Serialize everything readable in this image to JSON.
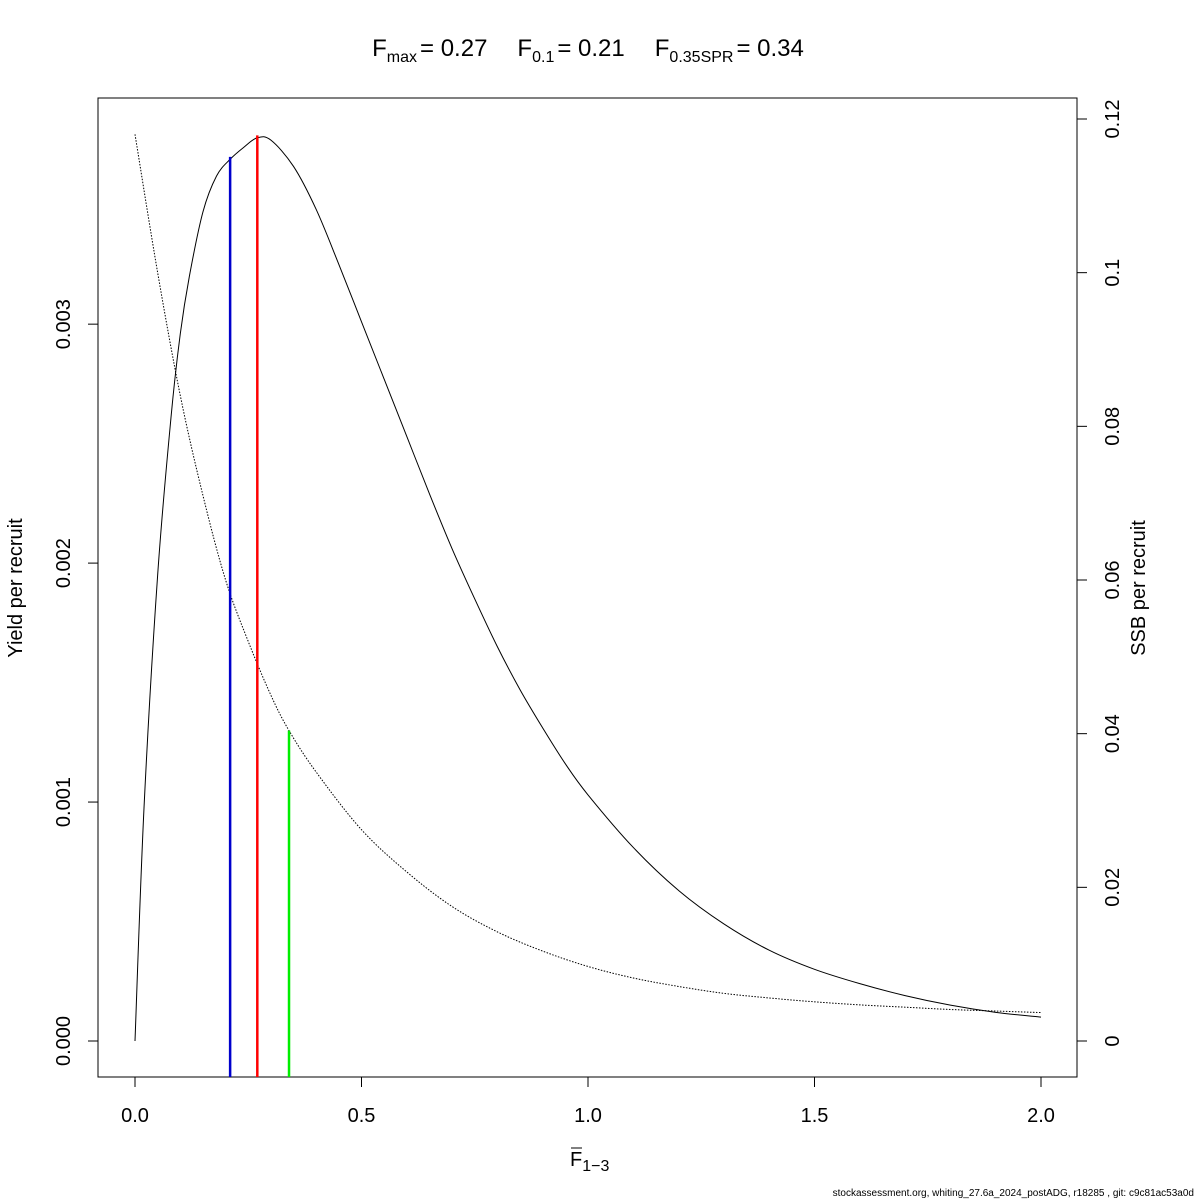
{
  "chart_data": {
    "type": "line",
    "title_parts": [
      {
        "main": "F",
        "sub": "max",
        "value": "= 0.27"
      },
      {
        "main": "F",
        "sub": "0.1",
        "value": "= 0.21"
      },
      {
        "main": "F",
        "sub": "0.35SPR",
        "value": "= 0.34"
      }
    ],
    "xlabel": {
      "main": "F",
      "sub": "1−3"
    },
    "ylabel_left": "Yield per recruit",
    "ylabel_right": "SSB per recruit",
    "xlim": [
      0,
      2
    ],
    "ylim_left": [
      0,
      0.0038
    ],
    "ylim_right": [
      0,
      0.12
    ],
    "x_ticks": [
      0.0,
      0.5,
      1.0,
      1.5,
      2.0
    ],
    "x_tick_labels": [
      "0.0",
      "0.5",
      "1.0",
      "1.5",
      "2.0"
    ],
    "y_left_ticks": [
      0.0,
      0.001,
      0.002,
      0.003
    ],
    "y_left_tick_labels": [
      "0.000",
      "0.001",
      "0.002",
      "0.003"
    ],
    "y_right_ticks": [
      0,
      0.02,
      0.04,
      0.06,
      0.08,
      0.1,
      0.12
    ],
    "y_right_tick_labels": [
      "0",
      "0.02",
      "0.04",
      "0.06",
      "0.08",
      "0.1",
      "0.12"
    ],
    "series": [
      {
        "name": "Yield per recruit",
        "axis": "left",
        "style": "solid",
        "color": "#000000",
        "x": [
          0,
          0.02,
          0.05,
          0.08,
          0.1,
          0.12,
          0.15,
          0.18,
          0.21,
          0.24,
          0.27,
          0.3,
          0.35,
          0.4,
          0.45,
          0.5,
          0.55,
          0.6,
          0.65,
          0.7,
          0.75,
          0.8,
          0.85,
          0.9,
          0.95,
          1.0,
          1.1,
          1.2,
          1.3,
          1.4,
          1.5,
          1.6,
          1.7,
          1.8,
          1.9,
          2.0
        ],
        "y": [
          0,
          0.00098,
          0.00195,
          0.00262,
          0.00296,
          0.0032,
          0.00347,
          0.00362,
          0.00369,
          0.00374,
          0.00378,
          0.00377,
          0.00366,
          0.00348,
          0.00325,
          0.00301,
          0.00277,
          0.00253,
          0.00229,
          0.00206,
          0.00185,
          0.00165,
          0.00147,
          0.00131,
          0.00116,
          0.00103,
          0.00081,
          0.00063,
          0.00049,
          0.00038,
          0.0003,
          0.00024,
          0.00019,
          0.00015,
          0.00012,
          0.0001
        ]
      },
      {
        "name": "SSB per recruit",
        "axis": "right",
        "style": "dotted",
        "color": "#000000",
        "x": [
          0,
          0.05,
          0.1,
          0.15,
          0.2,
          0.25,
          0.3,
          0.34,
          0.4,
          0.5,
          0.6,
          0.7,
          0.8,
          0.9,
          1.0,
          1.1,
          1.2,
          1.3,
          1.4,
          1.5,
          1.6,
          1.7,
          1.8,
          1.9,
          2.0
        ],
        "y": [
          0.118,
          0.1,
          0.084,
          0.071,
          0.06,
          0.052,
          0.045,
          0.0404,
          0.035,
          0.0275,
          0.022,
          0.0175,
          0.0142,
          0.0117,
          0.0097,
          0.0082,
          0.0071,
          0.0062,
          0.0056,
          0.0051,
          0.0047,
          0.0044,
          0.0041,
          0.0039,
          0.0037
        ]
      }
    ],
    "reference_lines": [
      {
        "name": "F0.1",
        "x": 0.21,
        "axis": "left",
        "y_top": 0.0037,
        "color": "#0000cc"
      },
      {
        "name": "Fmax",
        "x": 0.27,
        "axis": "left",
        "y_top": 0.00379,
        "color": "#ff0000"
      },
      {
        "name": "F0.35SPR",
        "x": 0.34,
        "axis": "right",
        "y_top": 0.0404,
        "color": "#00ee00"
      }
    ]
  },
  "footer": "stockassessment.org, whiting_27.6a_2024_postADG, r18285 , git: c9c81ac53a0d"
}
